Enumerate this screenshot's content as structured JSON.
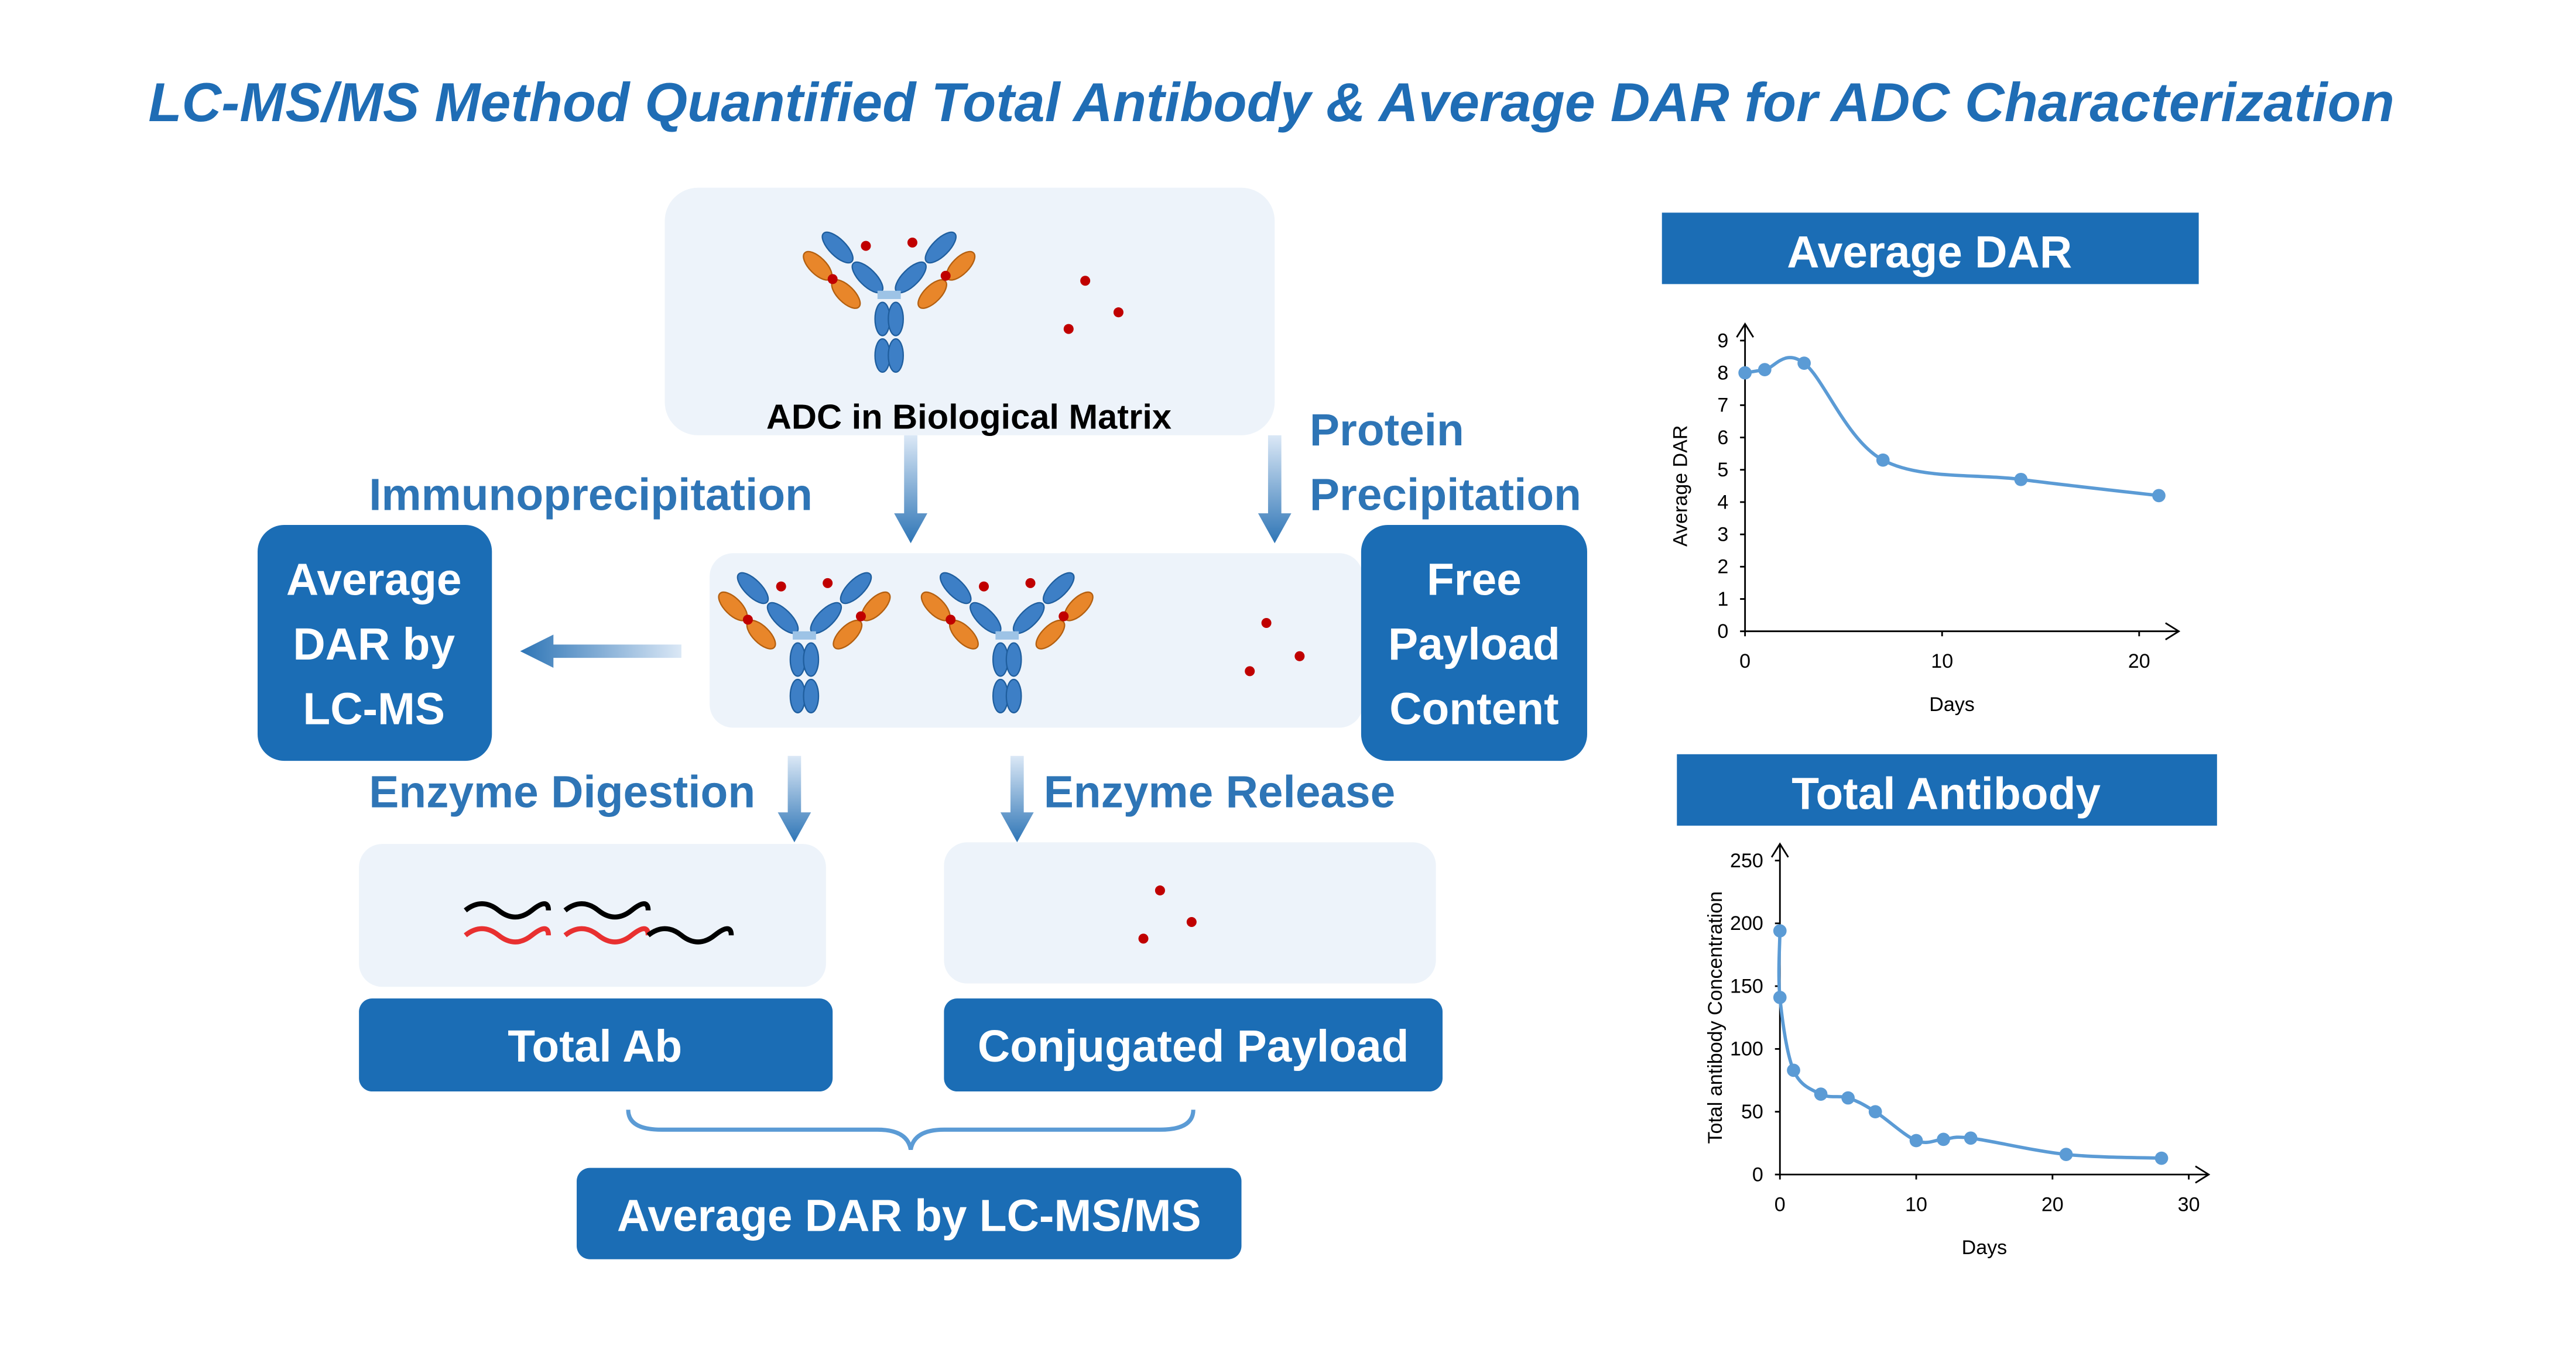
{
  "title": "LC-MS/MS Method Quantified Total Antibody & Average DAR for ADC Characterization",
  "nodes": {
    "matrix": "ADC in Biological Matrix",
    "immunoprecipitation": "Immunoprecipitation",
    "protein_precipitation": [
      "Protein",
      "Precipitation"
    ],
    "average_dar_lcms": [
      "Average",
      "DAR by",
      "LC-MS"
    ],
    "free_payload": [
      "Free",
      "Payload",
      "Content"
    ],
    "enzyme_digestion": "Enzyme Digestion",
    "enzyme_release": "Enzyme Release",
    "total_ab": "Total Ab",
    "conjugated_payload": "Conjugated Payload",
    "average_dar_lcmsms": "Average DAR by LC-MS/MS"
  },
  "chart_data": [
    {
      "type": "line",
      "title": "Average DAR",
      "x_label": "Days",
      "y_label": "Average DAR",
      "x": [
        0,
        1,
        3,
        7,
        14,
        21
      ],
      "values": [
        8.0,
        8.1,
        8.3,
        5.3,
        4.7,
        4.2
      ],
      "xlim": [
        0,
        21
      ],
      "ylim": [
        0,
        9
      ],
      "xticks": [
        0,
        10,
        20
      ],
      "yticks": [
        0,
        1,
        2,
        3,
        4,
        5,
        6,
        7,
        8,
        9
      ],
      "color": "#5b9bd5"
    },
    {
      "type": "line",
      "title": "Total Antibody",
      "x_label": "Days",
      "y_label": "Total antibody Concentration",
      "x": [
        0,
        0,
        1,
        3,
        5,
        7,
        10,
        12,
        14,
        21,
        28
      ],
      "values": [
        194,
        141,
        83,
        64,
        61,
        50,
        27,
        28,
        29,
        16,
        13
      ],
      "xlim": [
        0,
        30
      ],
      "ylim": [
        0,
        250
      ],
      "xticks": [
        0,
        10,
        20,
        30
      ],
      "yticks": [
        0,
        50,
        100,
        150,
        200,
        250
      ],
      "color": "#5b9bd5"
    }
  ]
}
